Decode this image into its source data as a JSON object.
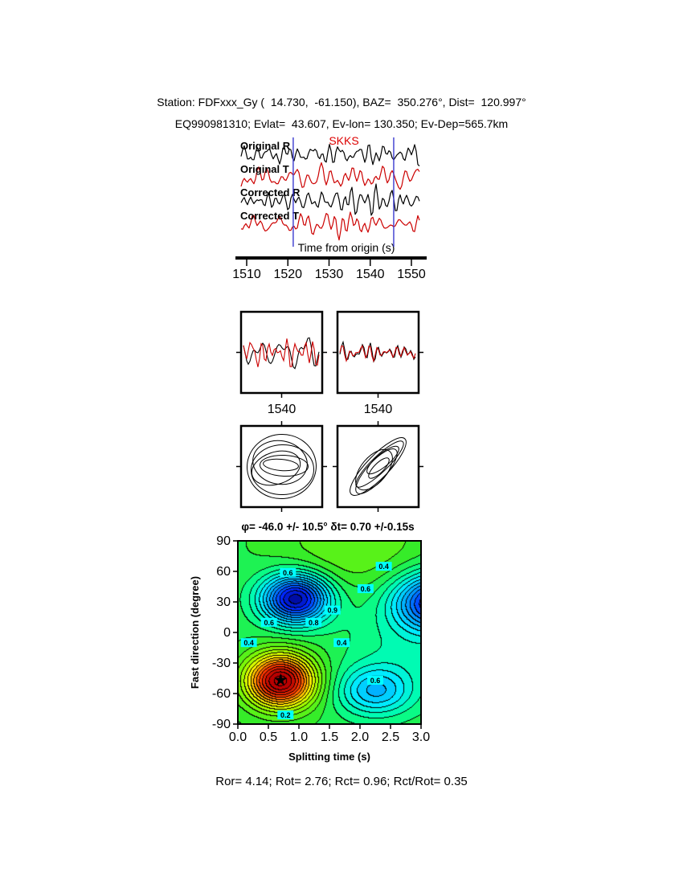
{
  "header": {
    "line1": "Station: FDFxxx_Gy (  14.730,  -61.150), BAZ=  350.276°, Dist=  120.997°",
    "line2": "EQ990981310; Evlat=  43.607, Ev-lon= 130.350; Ev-Dep=565.7km"
  },
  "footer": {
    "line": "Ror= 4.14; Rot= 2.76; Rct= 0.96; Rct/Rot= 0.35",
    "values": {
      "Ror": 4.14,
      "Rot": 2.76,
      "Rct": 0.96,
      "Rct_over_Rot": 0.35
    }
  },
  "colors": {
    "trace_black": "#000000",
    "trace_red": "#cc0000",
    "window_marker": "#3b3bd0",
    "phase_label": "#dd0000",
    "contour_label_bg": "#00ffff"
  },
  "chart_data": [
    {
      "type": "line",
      "name": "seismogram-panel",
      "title": "SKKS",
      "traces": [
        {
          "label": "Original R",
          "color": "black"
        },
        {
          "label": "Original T",
          "color": "red"
        },
        {
          "label": "Corrected R",
          "color": "black"
        },
        {
          "label": "Corrected T",
          "color": "red"
        }
      ],
      "xlabel": "Time from origin (s)",
      "x_ticks": [
        1510,
        1520,
        1530,
        1540,
        1550
      ],
      "xlim": [
        1507,
        1553
      ],
      "window_s": [
        1521.3,
        1545.7
      ]
    },
    {
      "type": "line",
      "name": "windowed-waveform-panels",
      "panels": [
        {
          "x_tick": "1540"
        },
        {
          "x_tick": "1540"
        }
      ]
    },
    {
      "type": "scatter",
      "name": "particle-motion-panels",
      "panels": [
        {
          "desc": "elliptical particle motion (uncorrected)"
        },
        {
          "desc": "diagonal linearized particle motion (corrected)"
        }
      ]
    },
    {
      "type": "heatmap",
      "name": "splitting-error-surface",
      "title": "φ= -46.0 +/- 10.5° δt= 0.70 +/-0.15s",
      "xlabel": "Splitting time (s)",
      "ylabel": "Fast direction (degree)",
      "x_ticks": [
        "0.0",
        "0.5",
        "1.0",
        "1.5",
        "2.0",
        "2.5",
        "3.0"
      ],
      "y_ticks": [
        90,
        60,
        30,
        0,
        -30,
        -60,
        -90
      ],
      "xlim": [
        0,
        3
      ],
      "ylim": [
        -90,
        90
      ],
      "grid": false,
      "best_fit": {
        "phi": -46.0,
        "phi_err": 10.5,
        "dt": 0.7,
        "dt_err": 0.15,
        "marker": "star",
        "x": 0.7,
        "y": -46
      },
      "contour_labels": [
        {
          "v": "0.6",
          "x": 0.82,
          "y": 59
        },
        {
          "v": "0.4",
          "x": 2.39,
          "y": 65
        },
        {
          "v": "0.6",
          "x": 2.09,
          "y": 43
        },
        {
          "v": "0.9",
          "x": 1.55,
          "y": 22
        },
        {
          "v": "0.8",
          "x": 1.24,
          "y": 10
        },
        {
          "v": "0.6",
          "x": 0.51,
          "y": 10
        },
        {
          "v": "0.4",
          "x": 0.18,
          "y": -10
        },
        {
          "v": "0.4",
          "x": 1.7,
          "y": -10
        },
        {
          "v": "0.6",
          "x": 2.25,
          "y": -47
        },
        {
          "v": "0.2",
          "x": 0.78,
          "y": -81
        }
      ],
      "surface_model": {
        "base": 0.55,
        "band_width": 0.04,
        "extrema": [
          {
            "x": 0.95,
            "y": 33,
            "amp": -0.5,
            "sx": 0.55,
            "sy": 24
          },
          {
            "x": 3.3,
            "y": 30,
            "amp": -0.45,
            "sx": 0.7,
            "sy": 28
          },
          {
            "x": 0.7,
            "y": -48,
            "amp": 0.55,
            "sx": 0.55,
            "sy": 26
          },
          {
            "x": 2.25,
            "y": -58,
            "amp": -0.22,
            "sx": 0.6,
            "sy": 24
          },
          {
            "x": 1.9,
            "y": 85,
            "amp": 0.09,
            "sx": 1.2,
            "sy": 45
          },
          {
            "x": 2.8,
            "y": -15,
            "amp": -0.07,
            "sx": 1.0,
            "sy": 50
          }
        ]
      }
    }
  ]
}
